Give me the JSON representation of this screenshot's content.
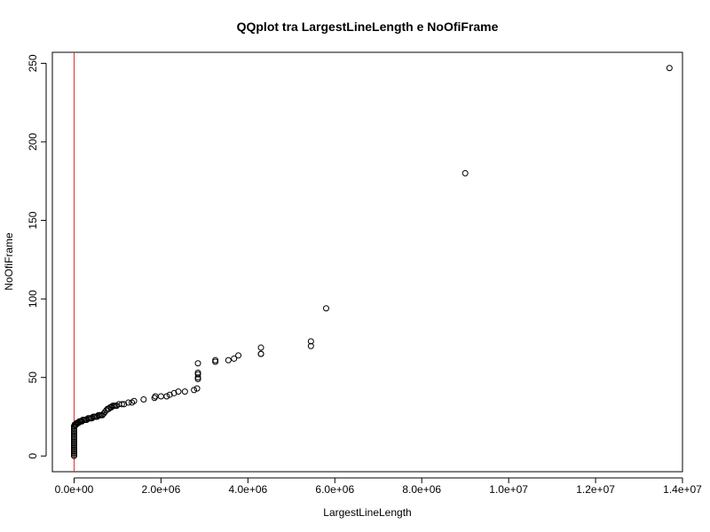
{
  "chart_data": {
    "type": "scatter",
    "title": "QQplot tra LargestLineLength e NoOfiFrame",
    "xlabel": "LargestLineLength",
    "ylabel": "NoOfiFrame",
    "xlim": [
      -500000,
      14000000
    ],
    "ylim": [
      -10,
      257
    ],
    "x_ticks": [
      0,
      2000000,
      4000000,
      6000000,
      8000000,
      10000000,
      12000000,
      14000000
    ],
    "x_tick_labels": [
      "0.0e+00",
      "2.0e+06",
      "4.0e+06",
      "6.0e+06",
      "8.0e+06",
      "1.0e+07",
      "1.2e+07",
      "1.4e+07"
    ],
    "y_ticks": [
      0,
      50,
      100,
      150,
      200,
      250
    ],
    "y_tick_labels": [
      "0",
      "50",
      "100",
      "150",
      "200",
      "250"
    ],
    "grid": false,
    "reference_line": {
      "orientation": "vertical",
      "x": 0,
      "color": "#e03030"
    },
    "series": [
      {
        "marker": "open-circle",
        "color": "#000000",
        "x": [
          0,
          0,
          0,
          0,
          0,
          0,
          0,
          0,
          0,
          0,
          0,
          0,
          0,
          0,
          0,
          0,
          0,
          0,
          0,
          0,
          5000,
          10000,
          15000,
          20000,
          25000,
          30000,
          35000,
          40000,
          50000,
          60000,
          70000,
          80000,
          100000,
          120000,
          140000,
          160000,
          180000,
          200000,
          230000,
          260000,
          290000,
          320000,
          350000,
          380000,
          410000,
          440000,
          470000,
          500000,
          530000,
          560000,
          590000,
          620000,
          650000,
          680000,
          710000,
          740000,
          770000,
          800000,
          830000,
          860000,
          890000,
          920000,
          950000,
          980000,
          1030000,
          1100000,
          1150000,
          1250000,
          1330000,
          1380000,
          1600000,
          1850000,
          1870000,
          2000000,
          2130000,
          2200000,
          2300000,
          2400000,
          2550000,
          2760000,
          2830000,
          2850000,
          2850000,
          2850000,
          2850000,
          2850000,
          3250000,
          3250000,
          3550000,
          3680000,
          3780000,
          4300000,
          4300000,
          4300000,
          5450000,
          5450000,
          5800000,
          9000000,
          13700000
        ],
        "y": [
          0,
          1,
          2,
          3,
          4,
          5,
          6,
          7,
          8,
          9,
          10,
          11,
          12,
          13,
          14,
          15,
          16,
          17,
          18,
          19,
          19,
          19,
          20,
          20,
          20,
          20,
          20,
          20,
          20,
          21,
          21,
          21,
          21,
          22,
          22,
          22,
          22,
          23,
          23,
          23,
          23,
          24,
          24,
          24,
          24,
          25,
          25,
          25,
          25,
          26,
          26,
          26,
          26,
          27,
          28,
          29,
          30,
          30,
          31,
          31,
          32,
          32,
          32,
          32,
          33,
          33,
          33,
          34,
          34,
          35,
          36,
          37,
          38,
          38,
          38,
          39,
          40,
          41,
          41,
          42,
          43,
          49,
          50,
          52,
          53,
          59,
          60,
          61,
          61,
          62,
          64,
          65,
          65,
          69,
          70,
          73,
          94,
          180,
          247
        ]
      }
    ]
  }
}
